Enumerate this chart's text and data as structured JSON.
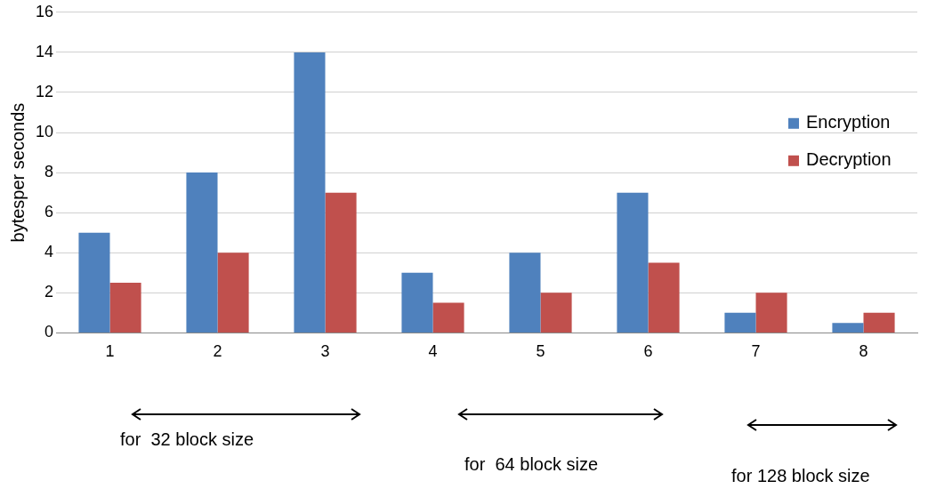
{
  "chart_data": {
    "type": "bar",
    "ylabel": "bytesper seconds",
    "categories": [
      "1",
      "2",
      "3",
      "4",
      "5",
      "6",
      "7",
      "8"
    ],
    "series": [
      {
        "name": "Encryption",
        "color": "#4f81bd",
        "values": [
          5,
          8,
          14,
          3,
          4,
          7,
          1,
          0.5
        ]
      },
      {
        "name": "Decryption",
        "color": "#c0504d",
        "values": [
          2.5,
          4,
          7,
          1.5,
          2,
          3.5,
          2,
          1
        ]
      }
    ],
    "ylim": [
      0,
      16
    ],
    "yticks": [
      0,
      2,
      4,
      6,
      8,
      10,
      12,
      14,
      16
    ],
    "grid": "y",
    "legend": "right",
    "annotations": [
      "for  32 block size",
      "for  64 block size",
      "for 128 block size"
    ]
  }
}
